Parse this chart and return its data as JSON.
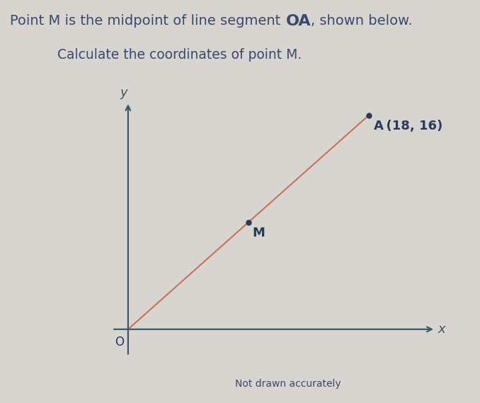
{
  "background_color": "#d8d4d0",
  "title_line1_parts": [
    {
      "text": "Point M is the midpoint of line segment ",
      "bold": false,
      "size": 14
    },
    {
      "text": "OA",
      "bold": true,
      "size": 16
    },
    {
      "text": ", shown below.",
      "bold": false,
      "size": 14
    }
  ],
  "title_line2": "Calculate the coordinates of point M.",
  "title_color": "#3a4a6b",
  "title_fontsize": 14,
  "subtitle_fontsize": 13.5,
  "O": [
    0,
    0
  ],
  "A": [
    18,
    16
  ],
  "M": [
    9,
    8
  ],
  "line_color": "#c8705a",
  "axis_color": "#3a5a6b",
  "point_color": "#2a3a5a",
  "label_A": "A (18, 16)",
  "label_M": "M",
  "label_O": "O",
  "label_x": "x",
  "label_y": "y",
  "note": "Not drawn accurately",
  "note_fontsize": 10,
  "axis_label_fontsize": 13,
  "point_label_fontsize": 13,
  "O_label_fontsize": 12,
  "point_size": 5
}
